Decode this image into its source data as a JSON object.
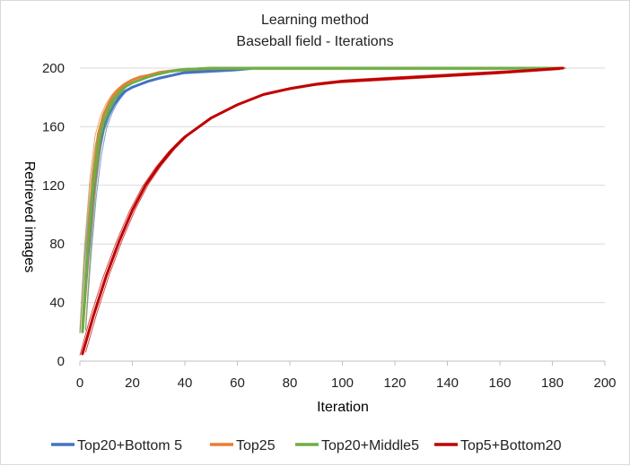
{
  "chart_data": {
    "type": "line",
    "title": "Learning method",
    "subtitle": "Baseball field - Iterations",
    "xlabel": "Iteration",
    "ylabel": "Retrieved images",
    "xlim": [
      0,
      200
    ],
    "ylim": [
      0,
      200
    ],
    "xticks": [
      "0",
      "20",
      "40",
      "60",
      "80",
      "100",
      "120",
      "140",
      "160",
      "180",
      "200"
    ],
    "yticks": [
      "0",
      "40",
      "80",
      "120",
      "160",
      "200"
    ],
    "grid": "horizontal",
    "legend_position": "bottom",
    "series": [
      {
        "name": "Top20+Bottom 5",
        "color": "#4472c4",
        "x": [
          1,
          3,
          5,
          7,
          9,
          11,
          13,
          15,
          17,
          20,
          23,
          26,
          30,
          35,
          40,
          50,
          60,
          66
        ],
        "values": [
          20,
          70,
          110,
          140,
          158,
          168,
          175,
          180,
          184,
          187,
          189,
          191,
          193,
          195,
          197,
          198,
          199,
          200
        ]
      },
      {
        "name": "Top25",
        "color": "#ed7d31",
        "x": [
          1,
          3,
          5,
          7,
          9,
          11,
          13,
          15,
          17,
          20,
          23,
          26,
          30,
          35,
          40,
          50,
          55
        ],
        "values": [
          22,
          80,
          125,
          155,
          168,
          176,
          182,
          186,
          189,
          192,
          194,
          195,
          197,
          198,
          199,
          200,
          200
        ]
      },
      {
        "name": "Top20+Middle5",
        "color": "#70ad47",
        "x": [
          1,
          3,
          5,
          7,
          9,
          11,
          13,
          15,
          17,
          20,
          23,
          26,
          30,
          35,
          40,
          50,
          60,
          80,
          184
        ],
        "values": [
          20,
          75,
          118,
          148,
          163,
          172,
          179,
          183,
          187,
          190,
          192,
          194,
          196,
          198,
          199,
          200,
          200,
          200,
          200
        ]
      },
      {
        "name": "Top5+Bottom20",
        "color": "#c00000",
        "x": [
          1,
          5,
          10,
          15,
          20,
          25,
          30,
          35,
          40,
          50,
          60,
          70,
          80,
          90,
          100,
          120,
          140,
          160,
          184
        ],
        "values": [
          5,
          30,
          58,
          82,
          103,
          120,
          133,
          144,
          153,
          166,
          175,
          182,
          186,
          189,
          191,
          193,
          195,
          197,
          200
        ]
      }
    ]
  }
}
